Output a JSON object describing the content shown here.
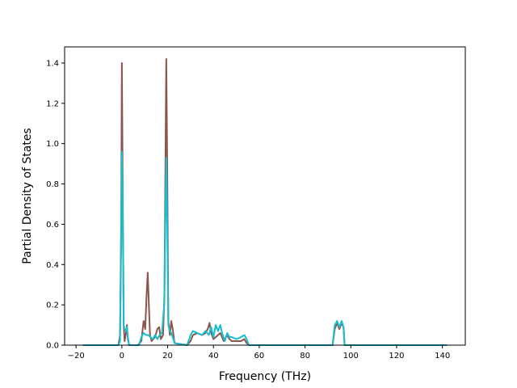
{
  "chart_data": {
    "type": "line",
    "title": "",
    "xlabel": "Frequency (THz)",
    "ylabel": "Partial Density of States",
    "xlim": [
      -25,
      150
    ],
    "ylim": [
      0,
      1.48
    ],
    "xticks": [
      -20,
      0,
      20,
      40,
      60,
      80,
      100,
      120,
      140
    ],
    "yticks": [
      0.0,
      0.2,
      0.4,
      0.6,
      0.8,
      1.0,
      1.2,
      1.4
    ],
    "grid": false,
    "legend": "none",
    "series": [
      {
        "color": "#8c564b",
        "points": [
          [
            -17,
            0
          ],
          [
            -1.5,
            0
          ],
          [
            -0.8,
            0.05
          ],
          [
            -0.3,
            0.6
          ],
          [
            0,
            1.4
          ],
          [
            0.3,
            0.9
          ],
          [
            0.8,
            0.1
          ],
          [
            1.2,
            0.02
          ],
          [
            1.8,
            0.06
          ],
          [
            2.2,
            0.1
          ],
          [
            2.6,
            0.03
          ],
          [
            3.2,
            0
          ],
          [
            7,
            0
          ],
          [
            8.5,
            0.02
          ],
          [
            9.5,
            0.12
          ],
          [
            10.2,
            0.08
          ],
          [
            10.8,
            0.25
          ],
          [
            11.3,
            0.36
          ],
          [
            11.8,
            0.2
          ],
          [
            12.3,
            0.05
          ],
          [
            13,
            0.02
          ],
          [
            14.5,
            0.04
          ],
          [
            15.5,
            0.08
          ],
          [
            16.3,
            0.09
          ],
          [
            17,
            0.03
          ],
          [
            18,
            0.05
          ],
          [
            18.6,
            0.25
          ],
          [
            19.1,
            1.0
          ],
          [
            19.4,
            1.42
          ],
          [
            19.8,
            0.9
          ],
          [
            20.3,
            0.12
          ],
          [
            21,
            0.05
          ],
          [
            21.6,
            0.12
          ],
          [
            22.2,
            0.08
          ],
          [
            23,
            0.01
          ],
          [
            28.5,
            0
          ],
          [
            30,
            0.02
          ],
          [
            31,
            0.05
          ],
          [
            33,
            0.06
          ],
          [
            35,
            0.05
          ],
          [
            36.5,
            0.06
          ],
          [
            37.5,
            0.08
          ],
          [
            38.3,
            0.11
          ],
          [
            39,
            0.06
          ],
          [
            40,
            0.03
          ],
          [
            42,
            0.05
          ],
          [
            43,
            0.06
          ],
          [
            44.5,
            0.02
          ],
          [
            46,
            0.05
          ],
          [
            47,
            0.03
          ],
          [
            48,
            0.02
          ],
          [
            50,
            0.02
          ],
          [
            52,
            0.02
          ],
          [
            53.5,
            0.03
          ],
          [
            54.5,
            0.01
          ],
          [
            55.5,
            0
          ],
          [
            92,
            0
          ],
          [
            93,
            0.08
          ],
          [
            94,
            0.11
          ],
          [
            95,
            0.08
          ],
          [
            96,
            0.11
          ],
          [
            96.8,
            0.09
          ],
          [
            97.3,
            0
          ],
          [
            142,
            0
          ]
        ]
      },
      {
        "color": "#17becf",
        "points": [
          [
            -17,
            0
          ],
          [
            -1.5,
            0
          ],
          [
            -0.8,
            0.02
          ],
          [
            -0.3,
            0.5
          ],
          [
            0,
            0.96
          ],
          [
            0.3,
            0.8
          ],
          [
            0.8,
            0.1
          ],
          [
            1.2,
            0.08
          ],
          [
            1.8,
            0.07
          ],
          [
            2.2,
            0.09
          ],
          [
            2.6,
            0.04
          ],
          [
            3.2,
            0
          ],
          [
            7.5,
            0
          ],
          [
            8.5,
            0.04
          ],
          [
            9.5,
            0.06
          ],
          [
            10.5,
            0.05
          ],
          [
            11.5,
            0.05
          ],
          [
            12.5,
            0.04
          ],
          [
            13.5,
            0.03
          ],
          [
            14.5,
            0.05
          ],
          [
            15.5,
            0.03
          ],
          [
            16.5,
            0.05
          ],
          [
            17.5,
            0.06
          ],
          [
            18.5,
            0.2
          ],
          [
            19.1,
            0.7
          ],
          [
            19.4,
            0.93
          ],
          [
            19.8,
            0.6
          ],
          [
            20.3,
            0.1
          ],
          [
            21,
            0.07
          ],
          [
            21.6,
            0.06
          ],
          [
            22.2,
            0.04
          ],
          [
            23,
            0.01
          ],
          [
            28.5,
            0
          ],
          [
            30,
            0.05
          ],
          [
            31,
            0.07
          ],
          [
            33,
            0.06
          ],
          [
            35,
            0.05
          ],
          [
            36.5,
            0.07
          ],
          [
            38,
            0.05
          ],
          [
            39,
            0.09
          ],
          [
            40,
            0.04
          ],
          [
            41,
            0.1
          ],
          [
            42,
            0.07
          ],
          [
            43,
            0.1
          ],
          [
            44,
            0.05
          ],
          [
            45,
            0.02
          ],
          [
            46,
            0.06
          ],
          [
            47,
            0.04
          ],
          [
            48,
            0.04
          ],
          [
            50,
            0.03
          ],
          [
            52,
            0.04
          ],
          [
            53.5,
            0.05
          ],
          [
            54.5,
            0.03
          ],
          [
            55.5,
            0
          ],
          [
            92,
            0
          ],
          [
            93,
            0.1
          ],
          [
            94,
            0.12
          ],
          [
            95,
            0.09
          ],
          [
            96,
            0.12
          ],
          [
            96.8,
            0.09
          ],
          [
            97.3,
            0
          ],
          [
            142,
            0
          ]
        ]
      }
    ]
  }
}
